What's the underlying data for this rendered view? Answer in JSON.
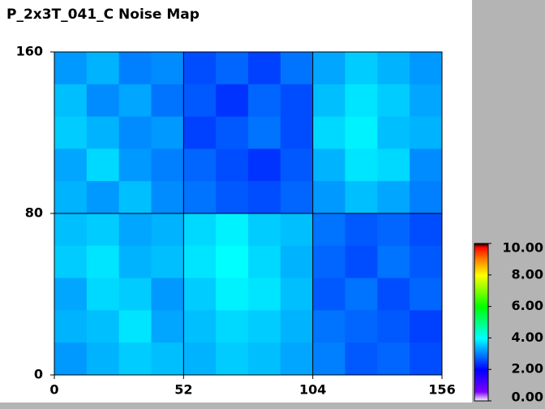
{
  "chart_data": {
    "type": "heatmap",
    "title": "P_2x3T_041_C Noise Map",
    "xlim": [
      0,
      156
    ],
    "ylim": [
      0,
      160
    ],
    "xticks": [
      0,
      52,
      104,
      156
    ],
    "yticks": [
      0,
      80,
      160
    ],
    "grid": true,
    "zlim": [
      0,
      10
    ],
    "zticks": [
      {
        "value": 0,
        "label": "0.00"
      },
      {
        "value": 2,
        "label": "2.00"
      },
      {
        "value": 4,
        "label": "4.00"
      },
      {
        "value": 6,
        "label": "6.00"
      },
      {
        "value": 8,
        "label": "8.00"
      },
      {
        "value": 10,
        "label": "10.00"
      }
    ],
    "colorscale": [
      [
        0,
        "#ffffff"
      ],
      [
        0.6,
        "#7a00ff"
      ],
      [
        2,
        "#0000ff"
      ],
      [
        4,
        "#00ffff"
      ],
      [
        6,
        "#00ff00"
      ],
      [
        8,
        "#ffff00"
      ],
      [
        9,
        "#ff8000"
      ],
      [
        9.8,
        "#ff0000"
      ],
      [
        10,
        "#000000"
      ]
    ],
    "z": [
      [
        3.2,
        3.4,
        3.0,
        3.1,
        2.6,
        2.8,
        2.5,
        2.9,
        3.3,
        3.6,
        3.4,
        3.2
      ],
      [
        3.5,
        3.1,
        3.3,
        2.9,
        2.7,
        2.4,
        2.8,
        2.6,
        3.5,
        3.8,
        3.6,
        3.3
      ],
      [
        3.6,
        3.4,
        3.1,
        3.2,
        2.5,
        2.7,
        2.9,
        2.6,
        3.7,
        3.9,
        3.5,
        3.4
      ],
      [
        3.3,
        3.7,
        3.2,
        3.0,
        2.8,
        2.6,
        2.4,
        2.7,
        3.4,
        3.8,
        3.7,
        3.1
      ],
      [
        3.4,
        3.2,
        3.5,
        3.1,
        2.9,
        2.7,
        2.6,
        2.8,
        3.2,
        3.5,
        3.3,
        3.0
      ],
      [
        3.5,
        3.6,
        3.3,
        3.4,
        3.7,
        3.9,
        3.6,
        3.5,
        2.9,
        2.7,
        2.8,
        2.6
      ],
      [
        3.6,
        3.8,
        3.4,
        3.5,
        3.8,
        4.0,
        3.7,
        3.4,
        2.8,
        2.6,
        2.9,
        2.7
      ],
      [
        3.3,
        3.7,
        3.6,
        3.2,
        3.6,
        3.9,
        3.8,
        3.5,
        2.7,
        2.9,
        2.6,
        2.8
      ],
      [
        3.4,
        3.5,
        3.8,
        3.3,
        3.5,
        3.7,
        3.6,
        3.4,
        2.9,
        2.8,
        2.7,
        2.5
      ],
      [
        3.2,
        3.4,
        3.6,
        3.5,
        3.4,
        3.6,
        3.5,
        3.3,
        3.0,
        2.7,
        2.8,
        2.6
      ]
    ]
  }
}
